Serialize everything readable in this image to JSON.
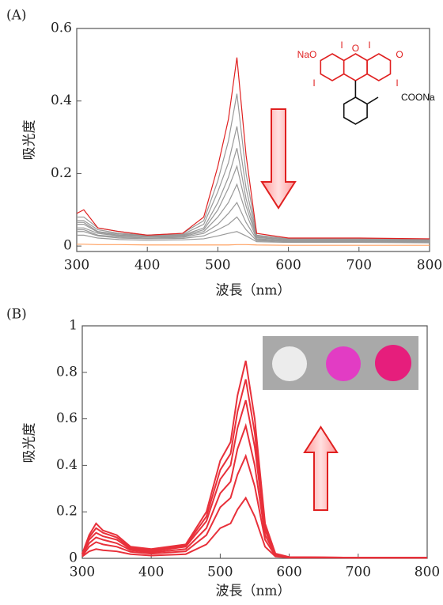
{
  "chart_data": [
    {
      "type": "line",
      "panel_label": "(A)",
      "xlabel": "波長（nm）",
      "ylabel": "吸光度",
      "xlim": [
        300,
        800
      ],
      "xticks": [
        300,
        400,
        500,
        600,
        700,
        800
      ],
      "ylim": [
        -0.015,
        0.6
      ],
      "yticks": [
        0,
        0.2,
        0.4,
        0.6
      ],
      "structure_labels": [
        "NaO",
        "I",
        "O",
        "I",
        "O",
        "I",
        "I",
        "COONa"
      ],
      "x": [
        300,
        310,
        330,
        360,
        400,
        450,
        480,
        500,
        515,
        527,
        540,
        555,
        600,
        700,
        800
      ],
      "series": [
        {
          "color": "#ffa060",
          "values": [
            0.005,
            0.005,
            0.004,
            0.004,
            0.003,
            0.003,
            0.003,
            0.003,
            0.003,
            0.004,
            0.004,
            0.003,
            0.002,
            0.002,
            0.002
          ]
        },
        {
          "color": "#999999",
          "values": [
            0.03,
            0.03,
            0.022,
            0.018,
            0.016,
            0.017,
            0.02,
            0.028,
            0.035,
            0.04,
            0.028,
            0.012,
            0.01,
            0.01,
            0.009
          ]
        },
        {
          "color": "#999999",
          "values": [
            0.04,
            0.04,
            0.028,
            0.022,
            0.02,
            0.021,
            0.028,
            0.045,
            0.06,
            0.08,
            0.045,
            0.015,
            0.012,
            0.012,
            0.011
          ]
        },
        {
          "color": "#999999",
          "values": [
            0.045,
            0.045,
            0.03,
            0.025,
            0.022,
            0.024,
            0.035,
            0.06,
            0.09,
            0.12,
            0.065,
            0.018,
            0.013,
            0.013,
            0.012
          ]
        },
        {
          "color": "#999999",
          "values": [
            0.05,
            0.05,
            0.035,
            0.028,
            0.025,
            0.026,
            0.04,
            0.08,
            0.12,
            0.17,
            0.09,
            0.02,
            0.015,
            0.015,
            0.014
          ]
        },
        {
          "color": "#999999",
          "values": [
            0.06,
            0.06,
            0.038,
            0.03,
            0.027,
            0.028,
            0.045,
            0.1,
            0.16,
            0.22,
            0.11,
            0.023,
            0.017,
            0.017,
            0.015
          ]
        },
        {
          "color": "#999999",
          "values": [
            0.065,
            0.065,
            0.04,
            0.033,
            0.028,
            0.03,
            0.05,
            0.12,
            0.19,
            0.27,
            0.13,
            0.025,
            0.018,
            0.018,
            0.016
          ]
        },
        {
          "color": "#999999",
          "values": [
            0.07,
            0.07,
            0.045,
            0.035,
            0.03,
            0.032,
            0.06,
            0.15,
            0.23,
            0.33,
            0.16,
            0.028,
            0.02,
            0.02,
            0.017
          ]
        },
        {
          "color": "#999999",
          "values": [
            0.08,
            0.08,
            0.05,
            0.04,
            0.03,
            0.035,
            0.07,
            0.18,
            0.29,
            0.42,
            0.2,
            0.03,
            0.02,
            0.02,
            0.018
          ]
        },
        {
          "color": "#e02020",
          "values": [
            0.09,
            0.1,
            0.05,
            0.04,
            0.03,
            0.035,
            0.08,
            0.22,
            0.35,
            0.52,
            0.25,
            0.035,
            0.022,
            0.022,
            0.02
          ]
        }
      ]
    },
    {
      "type": "line",
      "panel_label": "(B)",
      "xlabel": "波長（nm）",
      "ylabel": "吸光度",
      "xlim": [
        300,
        800
      ],
      "xticks": [
        300,
        400,
        500,
        600,
        700,
        800
      ],
      "ylim": [
        0,
        1
      ],
      "yticks": [
        0,
        0.2,
        0.4,
        0.6,
        0.8,
        1
      ],
      "x": [
        300,
        310,
        320,
        330,
        350,
        370,
        400,
        450,
        480,
        500,
        515,
        525,
        537,
        550,
        565,
        580,
        600,
        700,
        800
      ],
      "series": [
        {
          "color": "#e8303a",
          "values": [
            0.008,
            0.03,
            0.04,
            0.035,
            0.03,
            0.018,
            0.012,
            0.018,
            0.06,
            0.13,
            0.15,
            0.21,
            0.26,
            0.18,
            0.05,
            0.008,
            0.003,
            0.003,
            0.003
          ]
        },
        {
          "color": "#e8303a",
          "values": [
            0.01,
            0.05,
            0.07,
            0.06,
            0.05,
            0.028,
            0.02,
            0.03,
            0.1,
            0.22,
            0.26,
            0.36,
            0.44,
            0.31,
            0.08,
            0.01,
            0.004,
            0.003,
            0.003
          ]
        },
        {
          "color": "#e8303a",
          "values": [
            0.015,
            0.065,
            0.09,
            0.08,
            0.065,
            0.035,
            0.025,
            0.04,
            0.13,
            0.28,
            0.33,
            0.47,
            0.57,
            0.4,
            0.1,
            0.015,
            0.004,
            0.003,
            0.003
          ]
        },
        {
          "color": "#e8303a",
          "values": [
            0.02,
            0.08,
            0.11,
            0.095,
            0.08,
            0.04,
            0.03,
            0.05,
            0.16,
            0.34,
            0.4,
            0.56,
            0.68,
            0.48,
            0.12,
            0.02,
            0.005,
            0.003,
            0.003
          ]
        },
        {
          "color": "#e8303a",
          "values": [
            0.02,
            0.09,
            0.13,
            0.11,
            0.09,
            0.045,
            0.035,
            0.055,
            0.18,
            0.38,
            0.45,
            0.63,
            0.77,
            0.54,
            0.13,
            0.02,
            0.005,
            0.003,
            0.003
          ]
        },
        {
          "color": "#e8303a",
          "values": [
            0.02,
            0.1,
            0.15,
            0.12,
            0.1,
            0.05,
            0.04,
            0.06,
            0.2,
            0.42,
            0.5,
            0.7,
            0.85,
            0.6,
            0.15,
            0.02,
            0.005,
            0.003,
            0.003
          ]
        }
      ]
    }
  ]
}
